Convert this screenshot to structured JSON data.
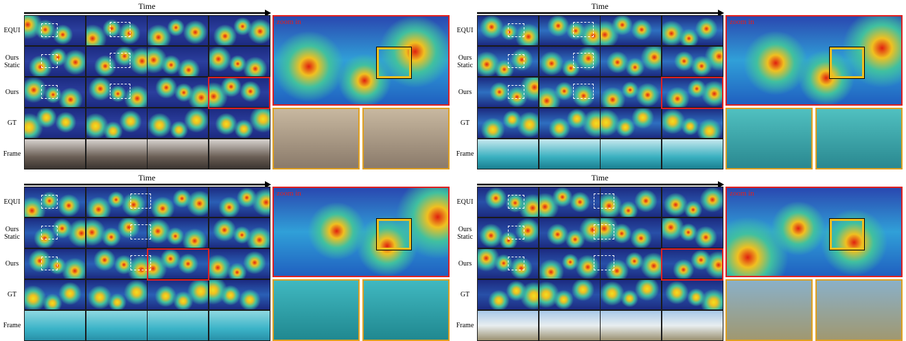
{
  "panels": [
    {
      "time": "Time",
      "rows": [
        "EQUI",
        "Ours Static",
        "Ours",
        "GT",
        "Frame"
      ],
      "zoom": "zoom in"
    },
    {
      "time": "Time",
      "rows": [
        "EQUI",
        "Ours Static",
        "Ours",
        "GT",
        "Frame"
      ],
      "zoom": "zoom in"
    },
    {
      "time": "Time",
      "rows": [
        "EQUI",
        "Ours Static",
        "Ours",
        "GT",
        "Frame"
      ],
      "zoom": "zoom in"
    },
    {
      "time": "Time",
      "rows": [
        "EQUI",
        "Ours Static",
        "Ours",
        "GT",
        "Frame"
      ],
      "zoom": "zoom in"
    }
  ]
}
